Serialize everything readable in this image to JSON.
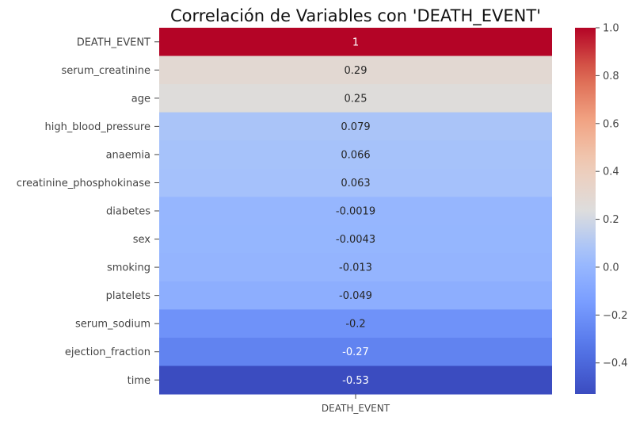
{
  "chart_data": {
    "type": "heatmap",
    "title": "Correlación de Variables con 'DEATH_EVENT'",
    "column": "DEATH_EVENT",
    "rows": [
      {
        "label": "DEATH_EVENT",
        "value": 1,
        "text": "1"
      },
      {
        "label": "serum_creatinine",
        "value": 0.29,
        "text": "0.29"
      },
      {
        "label": "age",
        "value": 0.25,
        "text": "0.25"
      },
      {
        "label": "high_blood_pressure",
        "value": 0.079,
        "text": "0.079"
      },
      {
        "label": "anaemia",
        "value": 0.066,
        "text": "0.066"
      },
      {
        "label": "creatinine_phosphokinase",
        "value": 0.063,
        "text": "0.063"
      },
      {
        "label": "diabetes",
        "value": -0.0019,
        "text": "-0.0019"
      },
      {
        "label": "sex",
        "value": -0.0043,
        "text": "-0.0043"
      },
      {
        "label": "smoking",
        "value": -0.013,
        "text": "-0.013"
      },
      {
        "label": "platelets",
        "value": -0.049,
        "text": "-0.049"
      },
      {
        "label": "serum_sodium",
        "value": -0.2,
        "text": "-0.2"
      },
      {
        "label": "ejection_fraction",
        "value": -0.27,
        "text": "-0.27"
      },
      {
        "label": "time",
        "value": -0.53,
        "text": "-0.53"
      }
    ],
    "colormap": "coolwarm",
    "colorbar": {
      "vmin": -0.53,
      "vmax": 1,
      "ticks": [
        {
          "value": -0.4,
          "label": "−0.4"
        },
        {
          "value": -0.2,
          "label": "−0.2"
        },
        {
          "value": 0.0,
          "label": "0.0"
        },
        {
          "value": 0.2,
          "label": "0.2"
        },
        {
          "value": 0.4,
          "label": "0.4"
        },
        {
          "value": 0.6,
          "label": "0.6"
        },
        {
          "value": 0.8,
          "label": "0.8"
        },
        {
          "value": 1.0,
          "label": "1.0"
        }
      ]
    },
    "colors": {
      "low": "#3b4cc0",
      "mid": "#dddddd",
      "high": "#b40426"
    }
  }
}
